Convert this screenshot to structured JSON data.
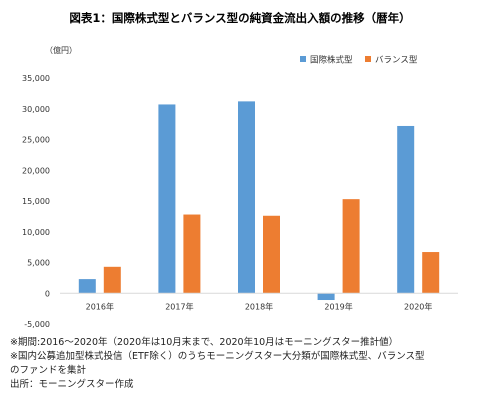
{
  "title": "図表1：国際株式型とバランス型の純資金流出入額の推移（暦年）",
  "unit": "（億円）",
  "chart_data": {
    "type": "bar",
    "categories": [
      "2016年",
      "2017年",
      "2018年",
      "2019年",
      "2020年"
    ],
    "series": [
      {
        "name": "国際株式型",
        "color": "#5b9bd5",
        "values": [
          2300,
          30700,
          31200,
          -1100,
          27200
        ]
      },
      {
        "name": "バランス型",
        "color": "#ed7d31",
        "values": [
          4300,
          12800,
          12600,
          15300,
          6700
        ]
      }
    ],
    "ylim": [
      -5000,
      35000
    ],
    "yticks": [
      -5000,
      0,
      5000,
      10000,
      15000,
      20000,
      25000,
      30000,
      35000
    ],
    "ytick_labels": [
      "-5,000",
      "0",
      "5,000",
      "10,000",
      "15,000",
      "20,000",
      "25,000",
      "30,000",
      "35,000"
    ],
    "negative_tick_color": "#c00000",
    "legend_position": "top-right",
    "grid": false
  },
  "notes": [
    "※期間:2016～2020年（2020年は10月末まで、2020年10月はモーニングスター推計値）",
    "※国内公募追加型株式投信（ETF除く）のうちモーニングスター大分類が国際株式型、バランス型",
    "のファンドを集計",
    "出所：モーニングスター作成"
  ]
}
